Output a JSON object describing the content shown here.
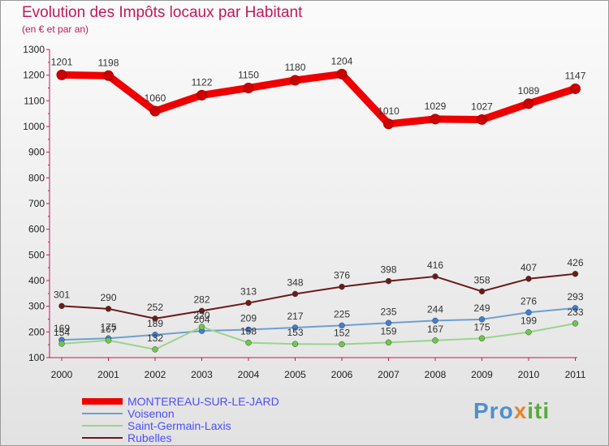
{
  "header": {
    "title": "Evolution des Impôts locaux par Habitant",
    "subtitle": "(en € et par an)"
  },
  "logo": {
    "text_a": "Pro",
    "text_b": "x",
    "text_c": "iti"
  },
  "chart_data": {
    "type": "line",
    "x": [
      "2000",
      "2001",
      "2002",
      "2003",
      "2004",
      "2005",
      "2006",
      "2007",
      "2008",
      "2009",
      "2010",
      "2011"
    ],
    "ylim": [
      100,
      1300
    ],
    "yticks": [
      100,
      200,
      300,
      400,
      500,
      600,
      700,
      800,
      900,
      1000,
      1100,
      1200,
      1300
    ],
    "grid": false,
    "legend_position": "bottom-left",
    "series": [
      {
        "name": "MONTEREAU-SUR-LE-JARD",
        "color": "#ee0000",
        "marker": "#cc0000",
        "values": [
          1201,
          1198,
          1060,
          1122,
          1150,
          1180,
          1204,
          1010,
          1029,
          1027,
          1089,
          1147
        ]
      },
      {
        "name": "Voisenon",
        "color": "#6e9fd0",
        "marker": "#3f7fd8",
        "values": [
          169,
          175,
          189,
          204,
          209,
          217,
          225,
          235,
          244,
          249,
          276,
          293
        ]
      },
      {
        "name": "Saint-Germain-Laxis",
        "color": "#9ad48a",
        "marker": "#6fc84a",
        "values": [
          154,
          167,
          132,
          220,
          158,
          153,
          152,
          159,
          167,
          175,
          199,
          233
        ]
      },
      {
        "name": "Rubelles",
        "color": "#6b1a1a",
        "marker": "#6b1a1a",
        "values": [
          301,
          290,
          252,
          282,
          313,
          348,
          376,
          398,
          416,
          358,
          407,
          426
        ]
      }
    ]
  }
}
